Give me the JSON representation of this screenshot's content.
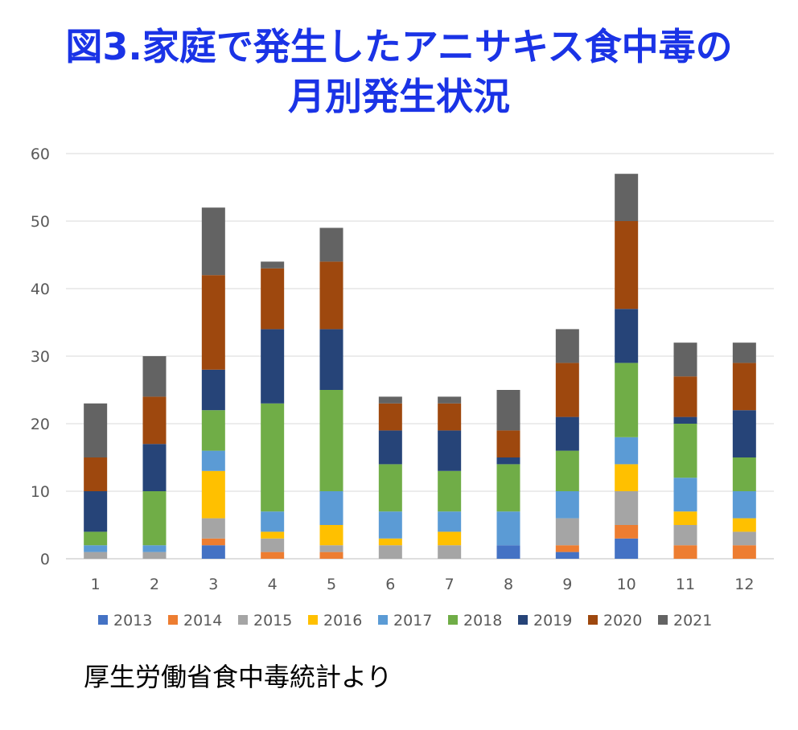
{
  "title": {
    "line1": "図3.家庭で発生したアニサキス食中毒の",
    "line2": "月別発生状況"
  },
  "source_note": "厚生労働省食中毒統計より",
  "chart_data": {
    "type": "bar",
    "stacked": true,
    "categories": [
      "1",
      "2",
      "3",
      "4",
      "5",
      "6",
      "7",
      "8",
      "9",
      "10",
      "11",
      "12"
    ],
    "ylim": [
      0,
      60
    ],
    "yticks": [
      "0",
      "10",
      "20",
      "30",
      "40",
      "50",
      "60"
    ],
    "grid": true,
    "legend_position": "bottom",
    "series": [
      {
        "name": "2013",
        "color": "#4472c4",
        "values": [
          0,
          0,
          2,
          0,
          0,
          0,
          0,
          2,
          1,
          3,
          0,
          0
        ]
      },
      {
        "name": "2014",
        "color": "#ed7d31",
        "values": [
          0,
          0,
          1,
          1,
          1,
          0,
          0,
          0,
          1,
          2,
          2,
          2
        ]
      },
      {
        "name": "2015",
        "color": "#a5a5a5",
        "values": [
          1,
          1,
          3,
          2,
          1,
          2,
          2,
          0,
          4,
          5,
          3,
          2
        ]
      },
      {
        "name": "2016",
        "color": "#ffc000",
        "values": [
          0,
          0,
          7,
          1,
          3,
          1,
          2,
          0,
          0,
          4,
          2,
          2
        ]
      },
      {
        "name": "2017",
        "color": "#5b9bd5",
        "values": [
          1,
          1,
          3,
          3,
          5,
          4,
          3,
          5,
          4,
          4,
          5,
          4
        ]
      },
      {
        "name": "2018",
        "color": "#70ad47",
        "values": [
          2,
          8,
          6,
          16,
          15,
          7,
          6,
          7,
          6,
          11,
          8,
          5
        ]
      },
      {
        "name": "2019",
        "color": "#264478",
        "values": [
          6,
          7,
          6,
          11,
          9,
          5,
          6,
          1,
          5,
          8,
          1,
          7
        ]
      },
      {
        "name": "2020",
        "color": "#9e480e",
        "values": [
          5,
          7,
          14,
          9,
          10,
          4,
          4,
          4,
          8,
          13,
          6,
          7
        ]
      },
      {
        "name": "2021",
        "color": "#636363",
        "values": [
          8,
          6,
          10,
          1,
          5,
          1,
          1,
          6,
          5,
          7,
          5,
          3
        ]
      }
    ]
  }
}
